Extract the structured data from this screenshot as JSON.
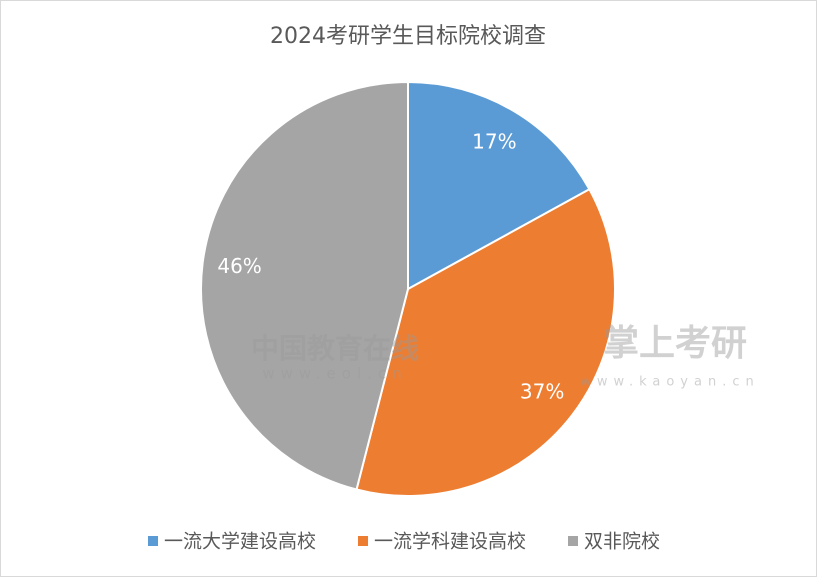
{
  "chart_data": {
    "type": "pie",
    "title": "2024考研学生目标院校调查",
    "categories": [
      "一流大学建设高校",
      "一流学科建设高校",
      "双非院校"
    ],
    "values": [
      17,
      37,
      46
    ],
    "value_labels": [
      "17%",
      "37%",
      "46%"
    ],
    "colors": [
      "#5b9bd5",
      "#ed7d31",
      "#a5a5a5"
    ],
    "legend": "bottom"
  },
  "watermarks": [
    "中国教育在线",
    "www.eol.cn",
    "掌上考研",
    "www.kaoyan.cn"
  ]
}
